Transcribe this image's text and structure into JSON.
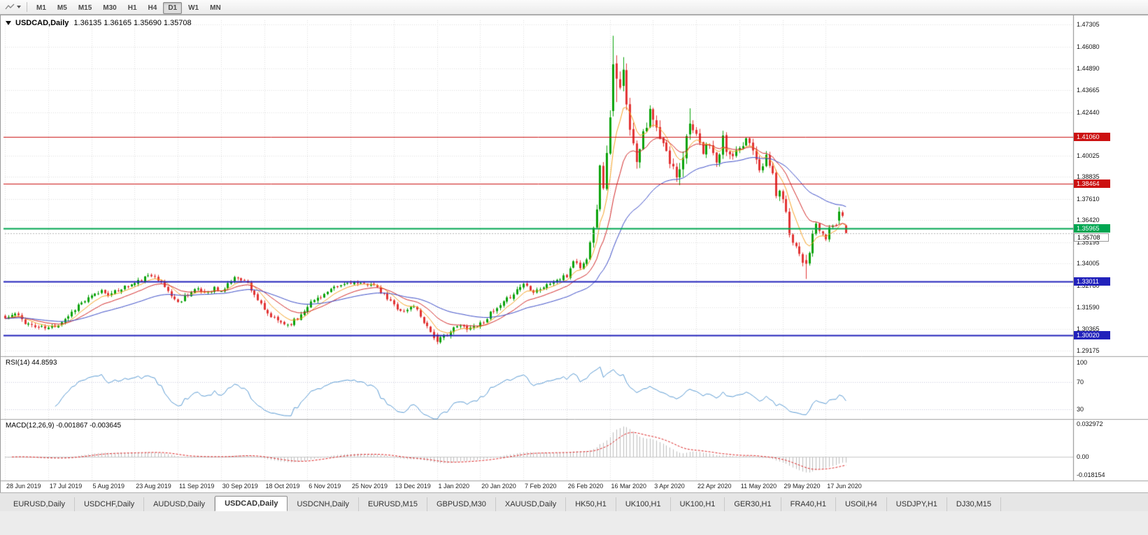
{
  "toolbar": {
    "timeframes": [
      {
        "label": "M1",
        "active": false
      },
      {
        "label": "M5",
        "active": false
      },
      {
        "label": "M15",
        "active": false
      },
      {
        "label": "M30",
        "active": false
      },
      {
        "label": "H1",
        "active": false
      },
      {
        "label": "H4",
        "active": false
      },
      {
        "label": "D1",
        "active": true
      },
      {
        "label": "W1",
        "active": false
      },
      {
        "label": "MN",
        "active": false
      }
    ]
  },
  "chart": {
    "title_symbol": "USDCAD,Daily",
    "title_ohlc": "1.36135 1.36165 1.35690 1.35708",
    "rsi_label": "RSI(14) 44.8593",
    "macd_label": "MACD(12,26,9) -0.001867 -0.003645",
    "price_axis_labels": [
      "1.47305",
      "1.46080",
      "1.44890",
      "1.43665",
      "1.42440",
      "1.40025",
      "1.38835",
      "1.37610",
      "1.36420",
      "1.35195",
      "1.34005",
      "1.32780",
      "1.31590",
      "1.30365",
      "1.29175"
    ],
    "hlines": [
      {
        "price": 1.4106,
        "label": "1.41060",
        "color": "#cc1111",
        "width": 1
      },
      {
        "price": 1.38464,
        "label": "1.38464",
        "color": "#cc1111",
        "width": 1
      },
      {
        "price": 1.35965,
        "label": "1.35965",
        "color": "#00a651",
        "width": 2
      },
      {
        "price": 1.33011,
        "label": "1.33011",
        "color": "#2222bb",
        "width": 2
      },
      {
        "price": 1.3002,
        "label": "1.30020",
        "color": "#2222bb",
        "width": 2
      }
    ],
    "current_price": "1.35708",
    "rsi_axis_labels": [
      {
        "value": 100,
        "label": "100"
      },
      {
        "value": 70,
        "label": "70"
      },
      {
        "value": 30,
        "label": "30"
      }
    ],
    "macd_axis_labels": [
      {
        "value": 0.032972,
        "label": "0.032972"
      },
      {
        "value": 0,
        "label": "0.00"
      },
      {
        "value": -0.018154,
        "label": "-0.018154"
      }
    ],
    "colors": {
      "candle_up": "#0aa30a",
      "candle_down": "#e23434",
      "ma_fast": "#f7a325",
      "ma_mid": "#d42a2a",
      "ma_slow": "#3b4cc8",
      "rsi_line": "#5a9bd4",
      "macd_hist": "#bdbdbd",
      "macd_signal": "#dd2222",
      "grid": "#dedede"
    }
  },
  "chart_data": {
    "type": "candlestick",
    "symbol": "USDCAD",
    "timeframe": "Daily",
    "title": "USDCAD,Daily",
    "last_bar": {
      "open": 1.36135,
      "high": 1.36165,
      "low": 1.3569,
      "close": 1.35708
    },
    "bar_count": 254,
    "x_labels": [
      "28 Jun 2019",
      "17 Jul 2019",
      "5 Aug 2019",
      "23 Aug 2019",
      "11 Sep 2019",
      "30 Sep 2019",
      "18 Oct 2019",
      "6 Nov 2019",
      "25 Nov 2019",
      "13 Dec 2019",
      "1 Jan 2020",
      "20 Jan 2020",
      "7 Feb 2020",
      "26 Feb 2020",
      "16 Mar 2020",
      "3 Apr 2020",
      "22 Apr 2020",
      "11 May 2020",
      "29 May 2020",
      "17 Jun 2020"
    ],
    "x_label_bar_step": 13,
    "ylim": [
      1.28889,
      1.47554
    ],
    "close_waypoints": [
      [
        0,
        1.3095
      ],
      [
        3,
        1.312
      ],
      [
        6,
        1.3075
      ],
      [
        9,
        1.3048
      ],
      [
        13,
        1.304
      ],
      [
        16,
        1.3065
      ],
      [
        19,
        1.311
      ],
      [
        22,
        1.317
      ],
      [
        26,
        1.3215
      ],
      [
        29,
        1.325
      ],
      [
        32,
        1.3228
      ],
      [
        35,
        1.3265
      ],
      [
        39,
        1.329
      ],
      [
        42,
        1.332
      ],
      [
        45,
        1.334
      ],
      [
        48,
        1.327
      ],
      [
        52,
        1.318
      ],
      [
        54,
        1.322
      ],
      [
        57,
        1.3255
      ],
      [
        60,
        1.324
      ],
      [
        63,
        1.3265
      ],
      [
        65,
        1.324
      ],
      [
        67,
        1.329
      ],
      [
        70,
        1.333
      ],
      [
        73,
        1.329
      ],
      [
        76,
        1.32
      ],
      [
        78,
        1.3135
      ],
      [
        81,
        1.309
      ],
      [
        85,
        1.306
      ],
      [
        88,
        1.3095
      ],
      [
        91,
        1.317
      ],
      [
        94,
        1.321
      ],
      [
        97,
        1.324
      ],
      [
        100,
        1.327
      ],
      [
        104,
        1.33
      ],
      [
        107,
        1.328
      ],
      [
        110,
        1.3295
      ],
      [
        113,
        1.324
      ],
      [
        117,
        1.317
      ],
      [
        120,
        1.313
      ],
      [
        123,
        1.317
      ],
      [
        126,
        1.308
      ],
      [
        130,
        1.2965
      ],
      [
        133,
        1.301
      ],
      [
        136,
        1.305
      ],
      [
        140,
        1.3045
      ],
      [
        143,
        1.3065
      ],
      [
        146,
        1.312
      ],
      [
        149,
        1.316
      ],
      [
        152,
        1.322
      ],
      [
        156,
        1.329
      ],
      [
        159,
        1.325
      ],
      [
        162,
        1.327
      ],
      [
        165,
        1.33
      ],
      [
        169,
        1.333
      ],
      [
        171,
        1.342
      ],
      [
        173,
        1.338
      ],
      [
        175,
        1.342
      ],
      [
        176,
        1.356
      ],
      [
        177,
        1.363
      ],
      [
        178,
        1.373
      ],
      [
        179,
        1.392
      ],
      [
        180,
        1.385
      ],
      [
        181,
        1.399
      ],
      [
        182,
        1.424
      ],
      [
        183,
        1.451
      ],
      [
        184,
        1.443
      ],
      [
        185,
        1.436
      ],
      [
        186,
        1.448
      ],
      [
        187,
        1.432
      ],
      [
        188,
        1.418
      ],
      [
        189,
        1.405
      ],
      [
        190,
        1.399
      ],
      [
        192,
        1.415
      ],
      [
        194,
        1.423
      ],
      [
        195,
        1.419
      ],
      [
        197,
        1.409
      ],
      [
        199,
        1.401
      ],
      [
        201,
        1.392
      ],
      [
        202,
        1.388
      ],
      [
        204,
        1.402
      ],
      [
        206,
        1.418
      ],
      [
        208,
        1.41
      ],
      [
        210,
        1.401
      ],
      [
        212,
        1.408
      ],
      [
        214,
        1.395
      ],
      [
        216,
        1.409
      ],
      [
        218,
        1.399
      ],
      [
        221,
        1.402
      ],
      [
        223,
        1.41
      ],
      [
        225,
        1.405
      ],
      [
        227,
        1.394
      ],
      [
        229,
        1.3985
      ],
      [
        231,
        1.39
      ],
      [
        232,
        1.379
      ],
      [
        234,
        1.378
      ],
      [
        236,
        1.357
      ],
      [
        238,
        1.35
      ],
      [
        240,
        1.342
      ],
      [
        241,
        1.34
      ],
      [
        243,
        1.355
      ],
      [
        244,
        1.362
      ],
      [
        246,
        1.355
      ],
      [
        247,
        1.354
      ],
      [
        248,
        1.36
      ],
      [
        250,
        1.362
      ],
      [
        251,
        1.369
      ],
      [
        252,
        1.3655
      ],
      [
        253,
        1.35708
      ]
    ],
    "candle_overrides": {
      "130": [
        1.3005,
        1.3015,
        1.2951,
        1.2965
      ],
      "183": [
        1.425,
        1.4669,
        1.422,
        1.451
      ],
      "184": [
        1.4515,
        1.456,
        1.43,
        1.443
      ],
      "186": [
        1.439,
        1.455,
        1.436,
        1.448
      ],
      "202": [
        1.394,
        1.396,
        1.3855,
        1.388
      ],
      "206": [
        1.412,
        1.4265,
        1.409,
        1.418
      ],
      "241": [
        1.342,
        1.345,
        1.3315,
        1.34
      ],
      "251": [
        1.364,
        1.3715,
        1.362,
        1.369
      ],
      "253": [
        1.36135,
        1.36165,
        1.3569,
        1.35708
      ]
    },
    "noise_seed": 11,
    "noise_base": 0.0013,
    "wick_base": 0.0013,
    "volatility_zones": [
      {
        "from": 176,
        "to": 206,
        "mult": 3.2
      },
      {
        "from": 207,
        "to": 234,
        "mult": 1.9
      },
      {
        "from": 235,
        "to": 245,
        "mult": 1.6
      }
    ],
    "ma_periods": {
      "fast": 7,
      "mid": 16,
      "slow": 40
    },
    "rsi": {
      "period": 14,
      "current": 44.8593,
      "levels": [
        70,
        30
      ],
      "ylim": [
        15,
        107
      ]
    },
    "macd": {
      "fast": 12,
      "slow": 26,
      "signal": 9,
      "current_macd": -0.001867,
      "current_signal": -0.003645,
      "ylim": [
        -0.0235,
        0.0365
      ]
    }
  },
  "tabs": [
    {
      "label": "EURUSD,Daily",
      "active": false
    },
    {
      "label": "USDCHF,Daily",
      "active": false
    },
    {
      "label": "AUDUSD,Daily",
      "active": false
    },
    {
      "label": "USDCAD,Daily",
      "active": true
    },
    {
      "label": "USDCNH,Daily",
      "active": false
    },
    {
      "label": "EURUSD,M15",
      "active": false
    },
    {
      "label": "GBPUSD,M30",
      "active": false
    },
    {
      "label": "XAUUSD,Daily",
      "active": false
    },
    {
      "label": "HK50,H1",
      "active": false
    },
    {
      "label": "UK100,H1",
      "active": false
    },
    {
      "label": "UK100,H1",
      "active": false
    },
    {
      "label": "GER30,H1",
      "active": false
    },
    {
      "label": "FRA40,H1",
      "active": false
    },
    {
      "label": "USOil,H4",
      "active": false
    },
    {
      "label": "USDJPY,H1",
      "active": false
    },
    {
      "label": "DJ30,M15",
      "active": false
    }
  ]
}
